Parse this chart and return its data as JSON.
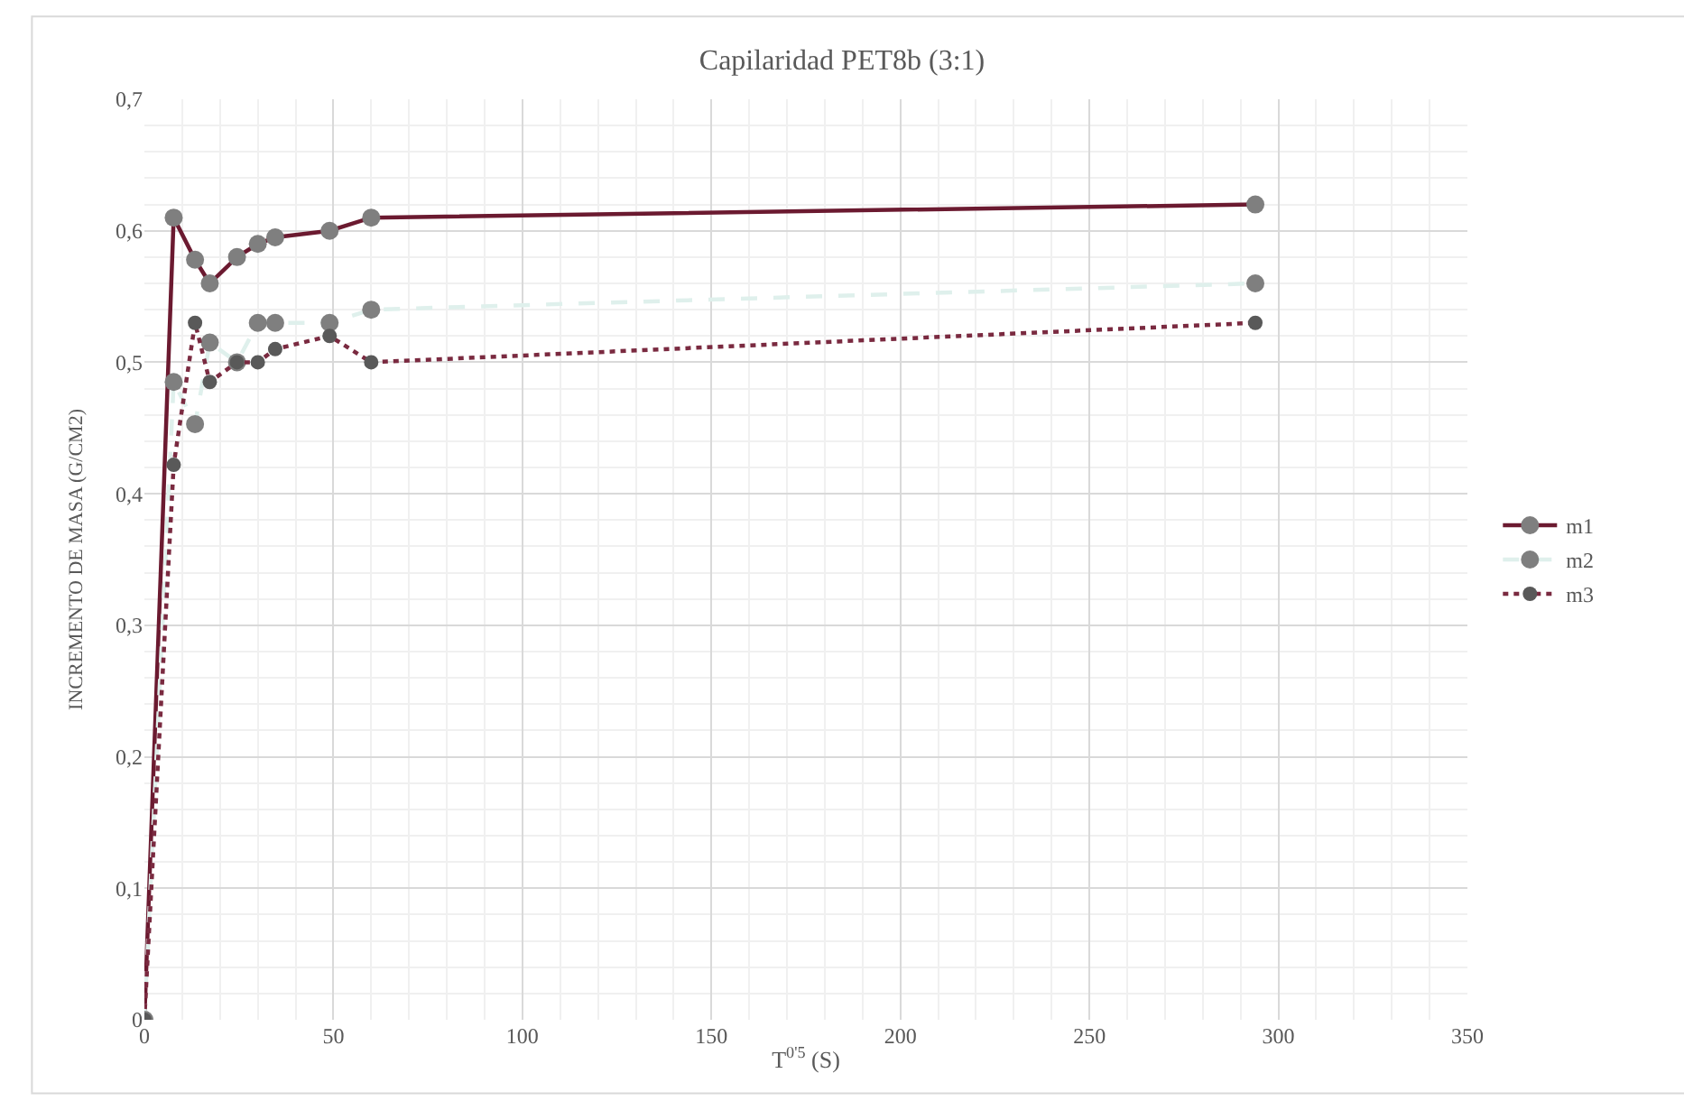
{
  "chart_data": {
    "type": "line",
    "title": "Capilaridad PET8b (3:1)",
    "xlabel": "T$^{0'5}$ (S)",
    "ylabel": "INCREMENTO DE MASA (G/CM2)",
    "x": [
      0,
      7.75,
      13.4,
      17.3,
      24.5,
      30,
      34.6,
      49,
      60,
      293.9
    ],
    "series": [
      {
        "name": "m1",
        "color": "#6b1a30",
        "line_style": "solid",
        "values": [
          0,
          0.61,
          0.578,
          0.56,
          0.58,
          0.59,
          0.595,
          0.6,
          0.61,
          0.62
        ]
      },
      {
        "name": "m2",
        "color": "#dff0ec",
        "line_style": "dashed",
        "values": [
          0,
          0.485,
          0.453,
          0.515,
          0.5,
          0.53,
          0.53,
          0.53,
          0.54,
          0.56
        ]
      },
      {
        "name": "m3",
        "color": "#7a2a40",
        "line_style": "dotted",
        "values": [
          0,
          0.422,
          0.53,
          0.485,
          0.5,
          0.5,
          0.51,
          0.52,
          0.5,
          0.53
        ]
      }
    ],
    "xlim": [
      0,
      350
    ],
    "xticks": [
      0,
      50,
      100,
      150,
      200,
      250,
      300,
      350
    ],
    "ylim": [
      0,
      0.7
    ],
    "yticks": [
      {
        "value": 0,
        "label": "0"
      },
      {
        "value": 0.1,
        "label": "0,1"
      },
      {
        "value": 0.2,
        "label": "0,2"
      },
      {
        "value": 0.3,
        "label": "0,3"
      },
      {
        "value": 0.4,
        "label": "0,4"
      },
      {
        "value": 0.5,
        "label": "0,5"
      },
      {
        "value": 0.6,
        "label": "0,6"
      },
      {
        "value": 0.7,
        "label": "0,7"
      }
    ],
    "grid": true,
    "legend": "right",
    "marker": "circle"
  }
}
